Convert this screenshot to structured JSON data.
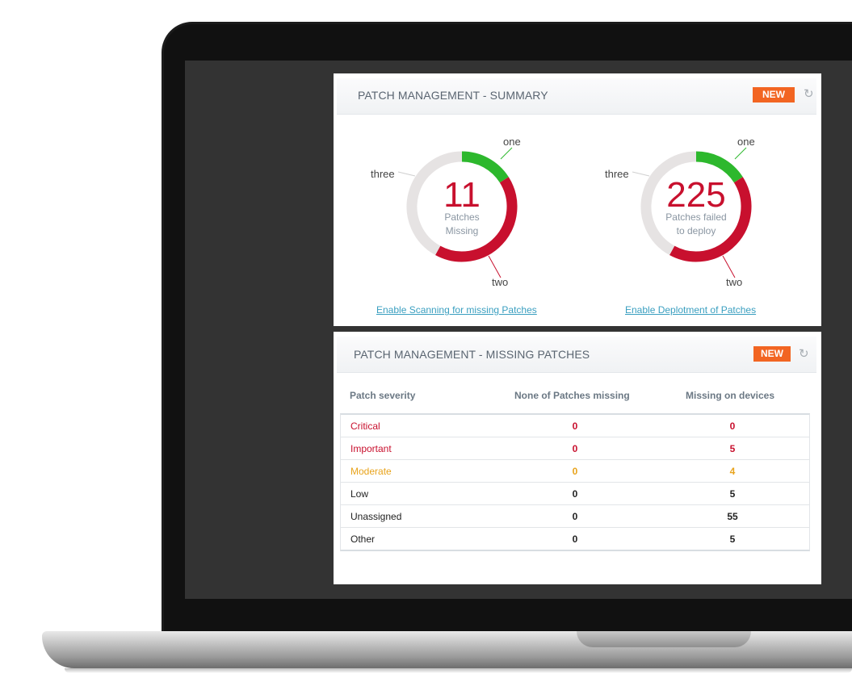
{
  "colors": {
    "segment_one": "#2db82d",
    "segment_two": "#c8102e",
    "segment_three": "#e6e3e3",
    "badge": "#f26522",
    "critical": "#c8102e",
    "important": "#c8102e",
    "moderate": "#e8a31b",
    "normal": "#222222",
    "link": "#3a9fc0"
  },
  "summary": {
    "title": "PATCH MANAGEMENT - SUMMARY",
    "badge": "NEW",
    "refresh_icon": "refresh-icon",
    "donuts": [
      {
        "number": "11",
        "caption_line1": "Patches",
        "caption_line2": "Missing",
        "labels": {
          "one": "one",
          "two": "two",
          "three": "three"
        },
        "segments": [
          {
            "name": "one",
            "fraction": 0.16
          },
          {
            "name": "two",
            "fraction": 0.42
          },
          {
            "name": "three",
            "fraction": 0.42
          }
        ],
        "link": "Enable Scanning for missing Patches"
      },
      {
        "number": "225",
        "caption_line1": "Patches failed",
        "caption_line2": "to deploy",
        "labels": {
          "one": "one",
          "two": "two",
          "three": "three"
        },
        "segments": [
          {
            "name": "one",
            "fraction": 0.16
          },
          {
            "name": "two",
            "fraction": 0.42
          },
          {
            "name": "three",
            "fraction": 0.42
          }
        ],
        "link": "Enable Deplotment of Patches"
      }
    ]
  },
  "missing": {
    "title": "PATCH MANAGEMENT - MISSING PATCHES",
    "badge": "NEW",
    "refresh_icon": "refresh-icon",
    "headers": [
      "Patch severity",
      "None of Patches missing",
      "Missing on devices"
    ],
    "rows": [
      {
        "severity": "Critical",
        "none": "0",
        "devices": "0",
        "color": "critical"
      },
      {
        "severity": "Important",
        "none": "0",
        "devices": "5",
        "color": "important"
      },
      {
        "severity": "Moderate",
        "none": "0",
        "devices": "4",
        "color": "moderate"
      },
      {
        "severity": "Low",
        "none": "0",
        "devices": "5",
        "color": "normal"
      },
      {
        "severity": "Unassigned",
        "none": "0",
        "devices": "55",
        "color": "normal"
      },
      {
        "severity": "Other",
        "none": "0",
        "devices": "5",
        "color": "normal"
      }
    ]
  }
}
